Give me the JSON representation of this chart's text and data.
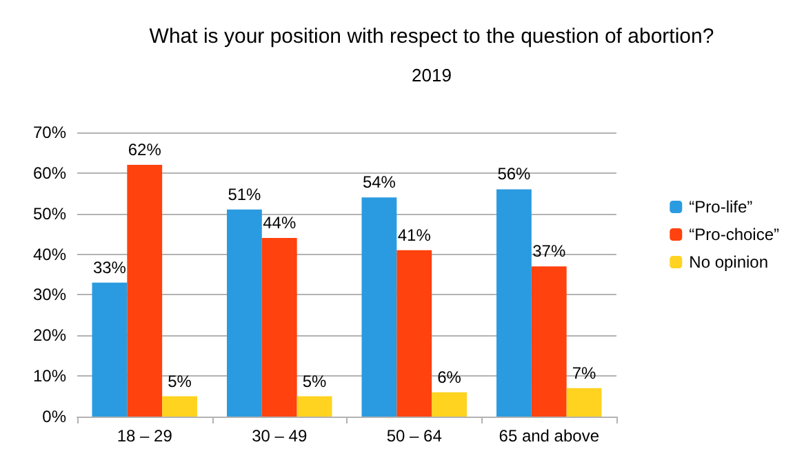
{
  "chart_data": {
    "type": "bar",
    "title": "What is your position with respect to the question of abortion?",
    "subtitle": "2019",
    "categories": [
      "18 – 29",
      "30 – 49",
      "50 – 64",
      "65 and above"
    ],
    "series": [
      {
        "name": "“Pro-life”",
        "color": "#2a9be0",
        "values": [
          33,
          51,
          54,
          56
        ],
        "value_labels": [
          "33%",
          "51%",
          "54%",
          "56%"
        ]
      },
      {
        "name": "“Pro-choice”",
        "color": "#ff420e",
        "values": [
          62,
          44,
          41,
          37
        ],
        "value_labels": [
          "62%",
          "44%",
          "41%",
          "37%"
        ]
      },
      {
        "name": "No opinion",
        "color": "#ffd320",
        "values": [
          5,
          5,
          6,
          7
        ],
        "value_labels": [
          "5%",
          "5%",
          "6%",
          "7%"
        ]
      }
    ],
    "ylim": [
      0,
      70
    ],
    "yticks": [
      {
        "value": 0,
        "label": "0%"
      },
      {
        "value": 10,
        "label": "10%"
      },
      {
        "value": 20,
        "label": "20%"
      },
      {
        "value": 30,
        "label": "30%"
      },
      {
        "value": 40,
        "label": "40%"
      },
      {
        "value": 50,
        "label": "50%"
      },
      {
        "value": 60,
        "label": "60%"
      },
      {
        "value": 70,
        "label": "70%"
      }
    ],
    "grid": "y",
    "legend": "right"
  }
}
